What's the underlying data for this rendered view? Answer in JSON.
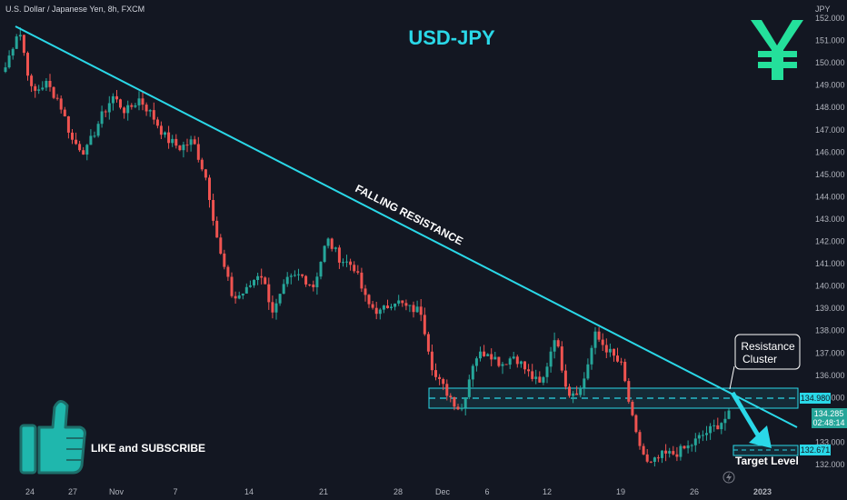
{
  "symbol": "U.S. Dollar / Japanese Yen, 8h, FXCM",
  "currency_label": "JPY",
  "like_text": "LIKE and SUBSCRIBE",
  "colors": {
    "up": "#26a69a",
    "down": "#ef5350",
    "accent": "#2ad8e8",
    "background": "#131722"
  },
  "icons": [
    "yen-icon",
    "thumbs-up-icon",
    "lightning-icon"
  ],
  "chart_data": {
    "type": "candlestick",
    "title": "USD-JPY",
    "ylim": [
      131.6,
      152.1
    ],
    "yticks": [
      132,
      133,
      134,
      135,
      136,
      137,
      138,
      139,
      140,
      141,
      142,
      143,
      144,
      145,
      146,
      147,
      148,
      149,
      150,
      151,
      152
    ],
    "yticks_labels": [
      "132.000",
      "133.000",
      "134.000",
      "135.000",
      "136.000",
      "137.000",
      "138.000",
      "139.000",
      "140.000",
      "141.000",
      "142.000",
      "143.000",
      "144.000",
      "145.000",
      "146.000",
      "147.000",
      "148.000",
      "149.000",
      "150.000",
      "151.000",
      "152.000"
    ],
    "x_ticks": [
      "24",
      "27",
      "Nov",
      "7",
      "14",
      "21",
      "28",
      "Dec",
      "6",
      "12",
      "19",
      "26",
      "2023"
    ],
    "close_path": [
      149.8,
      151.6,
      148.6,
      149.1,
      148.3,
      146.5,
      146.0,
      147.4,
      148.5,
      147.8,
      148.4,
      147.6,
      146.6,
      146.2,
      146.5,
      144.8,
      141.5,
      139.4,
      139.8,
      140.7,
      138.8,
      140.2,
      140.5,
      140.0,
      142.1,
      141.2,
      140.9,
      139.2,
      138.8,
      139.4,
      139.0,
      138.9,
      136.0,
      135.2,
      134.4,
      136.8,
      137.1,
      136.5,
      136.9,
      136.1,
      135.5,
      137.8,
      135.2,
      135.4,
      137.8,
      137.1,
      136.4,
      133.4,
      131.9,
      132.4,
      132.5,
      132.8,
      133.3,
      133.7,
      134.2
    ],
    "annotations": {
      "trendline_label": "FALLING RESISTANCE",
      "resistance_cluster": "Resistance Cluster",
      "resistance_cluster_lines": [
        "Resistance",
        "Cluster"
      ],
      "target_level": "Target Level",
      "resistance_price": "134.980",
      "current_price": "134.285",
      "countdown": "02:48:14",
      "target_price": "132.671"
    }
  }
}
